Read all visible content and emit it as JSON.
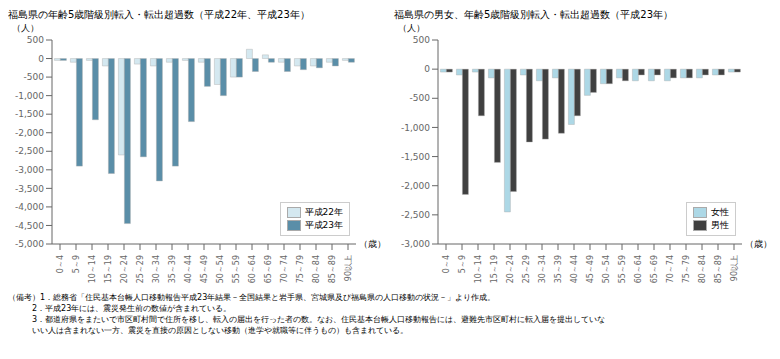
{
  "chart_data": [
    {
      "type": "bar",
      "title": "福島県の年齢5歳階級別転入・転出超過数（平成22年、平成23年）",
      "y_label": "（人）",
      "x_label": "（歳）",
      "categories": [
        "0～4",
        "5～9",
        "10～14",
        "15～19",
        "20～24",
        "25～29",
        "30～34",
        "35～39",
        "40～44",
        "45～49",
        "50～54",
        "55～59",
        "60～64",
        "65～69",
        "70～74",
        "75～79",
        "80～84",
        "85～89",
        "90以上"
      ],
      "series": [
        {
          "name": "平成22年",
          "color": "#d4e8f0",
          "values": [
            -50,
            -100,
            -50,
            -200,
            -2600,
            -150,
            -200,
            -100,
            -50,
            -100,
            -700,
            -500,
            250,
            100,
            -100,
            -200,
            -200,
            -100,
            -50
          ]
        },
        {
          "name": "平成23年",
          "color": "#5a8ea8",
          "values": [
            -50,
            -2900,
            -1650,
            -3100,
            -4450,
            -2650,
            -3300,
            -2900,
            -1700,
            -750,
            -1000,
            -500,
            -350,
            -100,
            -350,
            -300,
            -250,
            -200,
            -100
          ]
        }
      ],
      "ylim": [
        -5000,
        500
      ],
      "yticks": [
        500,
        0,
        -500,
        {
          "value": -1000,
          "label": "-1,000"
        },
        {
          "value": -1500,
          "label": "-1,500"
        },
        {
          "value": -2000,
          "label": "-2,000"
        },
        {
          "value": -2500,
          "label": "-2,500"
        },
        {
          "value": -3000,
          "label": "-3,000"
        },
        {
          "value": -3500,
          "label": "-3,500"
        },
        {
          "value": -4000,
          "label": "-4,000"
        },
        {
          "value": -4500,
          "label": "-4,500"
        },
        {
          "value": -5000,
          "label": "-5,000"
        }
      ],
      "grid": false,
      "legend": "lower right"
    },
    {
      "type": "bar",
      "title": "福島県の男女、年齢5歳階級別転入・転出超過数（平成23年）",
      "y_label": "（人）",
      "x_label": "（歳）",
      "categories": [
        "0～4",
        "5～9",
        "10～14",
        "15～19",
        "20～24",
        "25～29",
        "30～34",
        "35～39",
        "40～44",
        "45～49",
        "50～54",
        "55～59",
        "60～64",
        "65～69",
        "70～74",
        "75～79",
        "80～84",
        "85～89",
        "90以上"
      ],
      "series": [
        {
          "name": "女性",
          "color": "#add8e6",
          "values": [
            -50,
            -100,
            -50,
            -150,
            -2450,
            -100,
            -200,
            -150,
            -950,
            -450,
            -250,
            -150,
            -200,
            -200,
            -200,
            -150,
            -150,
            -100,
            -50
          ]
        },
        {
          "name": "男性",
          "color": "#404040",
          "values": [
            -50,
            -2150,
            -800,
            -1600,
            -2100,
            -1250,
            -1200,
            -1100,
            -800,
            -400,
            -250,
            -200,
            -100,
            -100,
            -150,
            -150,
            -100,
            -100,
            -50
          ]
        }
      ],
      "ylim": [
        -3000,
        500
      ],
      "yticks": [
        500,
        0,
        -500,
        {
          "value": -1000,
          "label": "-1,000"
        },
        {
          "value": -1500,
          "label": "-1,500"
        },
        {
          "value": -2000,
          "label": "-2,000"
        },
        {
          "value": -2500,
          "label": "-2,500"
        },
        {
          "value": -3000,
          "label": "-3,000"
        }
      ],
      "grid": false,
      "legend": "lower right"
    }
  ],
  "annotations": [
    "（備考）1．総務省「住民基本台帳人口移動報告平成23年結果－全国結果と岩手県、宮城県及び福島県の人口移動の状況－」より作成。",
    "　　　2．平成23年には、震災発生前の数値が含まれている。",
    "　　　3．都道府県をまたいで市区町村間で住所を移し、転入の届出を行った者の数。なお、住民基本台帳人口移動報告には、避難先市区町村に転入届を提出していな",
    "　　　いい人は含まれない一方、震災を直接の原因としない移動（進学や就職等に伴うもの）も含まれている。"
  ]
}
